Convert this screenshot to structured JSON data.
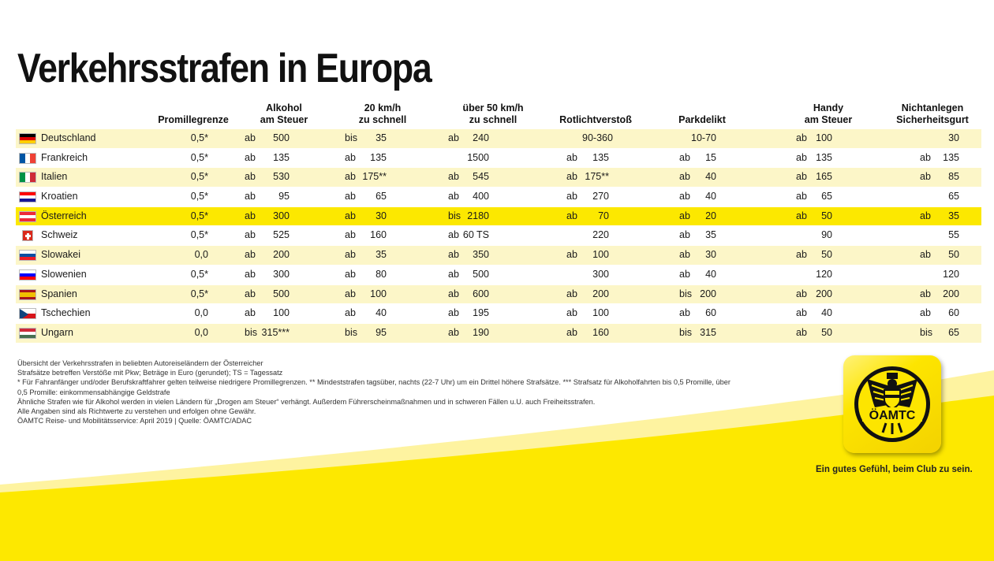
{
  "title": "Verkehrsstrafen in Europa",
  "headers": [
    "",
    "Promillegrenze",
    "Alkohol\nam Steuer",
    "20 km/h\nzu schnell",
    "über 50 km/h\nzu schnell",
    "Rotlichtverstoß",
    "Parkdelikt",
    "Handy\nam Steuer",
    "Nichtanlegen\nSicherheitsgurt"
  ],
  "rows": [
    {
      "country": "Deutschland",
      "flag": "de",
      "promille": "0,5*",
      "alk": [
        "ab",
        "500"
      ],
      "v20": [
        "bis",
        "35"
      ],
      "v50": [
        "ab",
        "240"
      ],
      "rot": [
        "",
        "90-360"
      ],
      "park": [
        "",
        "10-70"
      ],
      "handy": [
        "ab",
        "100"
      ],
      "gurt": [
        "",
        "30"
      ]
    },
    {
      "country": "Frankreich",
      "flag": "fr",
      "promille": "0,5*",
      "alk": [
        "ab",
        "135"
      ],
      "v20": [
        "ab",
        "135"
      ],
      "v50": [
        "",
        "1500"
      ],
      "rot": [
        "ab",
        "135"
      ],
      "park": [
        "ab",
        "15"
      ],
      "handy": [
        "ab",
        "135"
      ],
      "gurt": [
        "ab",
        "135"
      ]
    },
    {
      "country": "Italien",
      "flag": "it",
      "promille": "0,5*",
      "alk": [
        "ab",
        "530"
      ],
      "v20": [
        "ab",
        "175**"
      ],
      "v50": [
        "ab",
        "545"
      ],
      "rot": [
        "ab",
        "175**"
      ],
      "park": [
        "ab",
        "40"
      ],
      "handy": [
        "ab",
        "165"
      ],
      "gurt": [
        "ab",
        "85"
      ]
    },
    {
      "country": "Kroatien",
      "flag": "hr",
      "promille": "0,5*",
      "alk": [
        "ab",
        "95"
      ],
      "v20": [
        "ab",
        "65"
      ],
      "v50": [
        "ab",
        "400"
      ],
      "rot": [
        "ab",
        "270"
      ],
      "park": [
        "ab",
        "40"
      ],
      "handy": [
        "ab",
        "65"
      ],
      "gurt": [
        "",
        "65"
      ]
    },
    {
      "country": "Österreich",
      "flag": "at",
      "promille": "0,5*",
      "alk": [
        "ab",
        "300"
      ],
      "v20": [
        "ab",
        "30"
      ],
      "v50": [
        "bis",
        "2180"
      ],
      "rot": [
        "ab",
        "70"
      ],
      "park": [
        "ab",
        "20"
      ],
      "handy": [
        "ab",
        "50"
      ],
      "gurt": [
        "ab",
        "35"
      ]
    },
    {
      "country": "Schweiz",
      "flag": "ch",
      "promille": "0,5*",
      "alk": [
        "ab",
        "525"
      ],
      "v20": [
        "ab",
        "160"
      ],
      "v50": [
        "ab",
        "60 TS"
      ],
      "rot": [
        "",
        "220"
      ],
      "park": [
        "ab",
        "35"
      ],
      "handy": [
        "",
        "90"
      ],
      "gurt": [
        "",
        "55"
      ]
    },
    {
      "country": "Slowakei",
      "flag": "sk",
      "promille": "0,0",
      "alk": [
        "ab",
        "200"
      ],
      "v20": [
        "ab",
        "35"
      ],
      "v50": [
        "ab",
        "350"
      ],
      "rot": [
        "ab",
        "100"
      ],
      "park": [
        "ab",
        "30"
      ],
      "handy": [
        "ab",
        "50"
      ],
      "gurt": [
        "ab",
        "50"
      ]
    },
    {
      "country": "Slowenien",
      "flag": "si",
      "promille": "0,5*",
      "alk": [
        "ab",
        "300"
      ],
      "v20": [
        "ab",
        "80"
      ],
      "v50": [
        "ab",
        "500"
      ],
      "rot": [
        "",
        "300"
      ],
      "park": [
        "ab",
        "40"
      ],
      "handy": [
        "",
        "120"
      ],
      "gurt": [
        "",
        "120"
      ]
    },
    {
      "country": "Spanien",
      "flag": "es",
      "promille": "0,5*",
      "alk": [
        "ab",
        "500"
      ],
      "v20": [
        "ab",
        "100"
      ],
      "v50": [
        "ab",
        "600"
      ],
      "rot": [
        "ab",
        "200"
      ],
      "park": [
        "bis",
        "200"
      ],
      "handy": [
        "ab",
        "200"
      ],
      "gurt": [
        "ab",
        "200"
      ]
    },
    {
      "country": "Tschechien",
      "flag": "cz",
      "promille": "0,0",
      "alk": [
        "ab",
        "100"
      ],
      "v20": [
        "ab",
        "40"
      ],
      "v50": [
        "ab",
        "195"
      ],
      "rot": [
        "ab",
        "100"
      ],
      "park": [
        "ab",
        "60"
      ],
      "handy": [
        "ab",
        "40"
      ],
      "gurt": [
        "ab",
        "60"
      ]
    },
    {
      "country": "Ungarn",
      "flag": "hu",
      "promille": "0,0",
      "alk": [
        "bis",
        "315***"
      ],
      "v20": [
        "bis",
        "95"
      ],
      "v50": [
        "ab",
        "190"
      ],
      "rot": [
        "ab",
        "160"
      ],
      "park": [
        "bis",
        "315"
      ],
      "handy": [
        "ab",
        "50"
      ],
      "gurt": [
        "bis",
        "65"
      ]
    }
  ],
  "notes": [
    "Übersicht der Verkehrsstrafen in beliebten Autoreiseländern der Österreicher",
    "Strafsätze betreffen Verstöße mit Pkw; Beträge in Euro (gerundet); TS = Tagessatz",
    "* Für Fahranfänger und/oder Berufskraftfahrer gelten teilweise niedrigere Promillegrenzen. ** Mindeststrafen tagsüber, nachts (22-7 Uhr) um ein Drittel höhere Strafsätze. *** Strafsatz für Alkoholfahrten bis 0,5 Promille, über",
    "0,5 Promille: einkommensabhängige Geldstrafe",
    "Ähnliche Strafen wie für Alkohol werden in vielen Ländern für „Drogen am Steuer“ verhängt. Außerdem Führerscheinmaßnahmen und in schweren Fällen u.U. auch Freiheitsstrafen.",
    "Alle Angaben sind als Richtwerte zu verstehen und erfolgen ohne Gewähr.",
    "ÖAMTC Reise- und Mobilitätsservice: April 2019  |  Quelle: ÖAMTC/ADAC"
  ],
  "logo": {
    "text": "ÖAMTC",
    "icon": "oeamtc-eagle-emblem-icon"
  },
  "slogan": "Ein gutes Gefühl, beim Club zu sein.",
  "colors": {
    "brand_yellow": "#fce800",
    "row_tint": "#fcf6c8",
    "text": "#1a1a1a"
  }
}
